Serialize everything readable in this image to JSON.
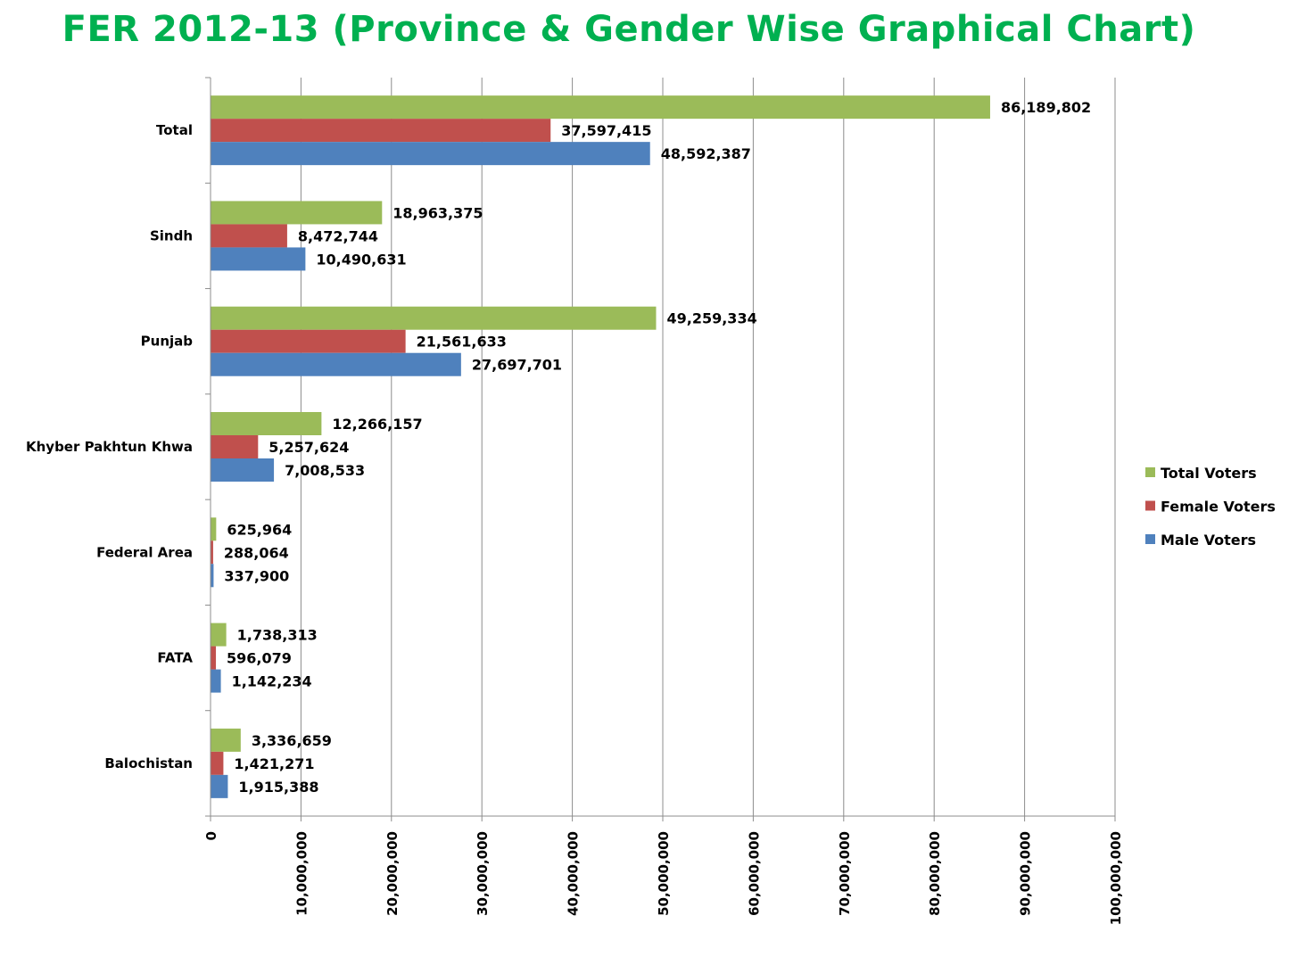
{
  "chart_data": {
    "type": "bar",
    "orientation": "horizontal",
    "title": "FER 2012-13 (Province & Gender Wise Graphical Chart)",
    "categories": [
      "Total",
      "Sindh",
      "Punjab",
      "Khyber Pakhtun Khwa",
      "Federal Area",
      "FATA",
      "Balochistan"
    ],
    "series": [
      {
        "name": "Total Voters",
        "color": "#9bbb59",
        "values": [
          86189802,
          18963375,
          49259334,
          12266157,
          625964,
          1738313,
          3336659
        ],
        "labels": [
          "86,189,802",
          "18,963,375",
          "49,259,334",
          "12,266,157",
          "625,964",
          "1,738,313",
          "3,336,659"
        ]
      },
      {
        "name": "Female Voters",
        "color": "#c0504d",
        "values": [
          37597415,
          8472744,
          21561633,
          5257624,
          288064,
          596079,
          1421271
        ],
        "labels": [
          "37,597,415",
          "8,472,744",
          "21,561,633",
          "5,257,624",
          "288,064",
          "596,079",
          "1,421,271"
        ]
      },
      {
        "name": "Male Voters",
        "color": "#4f81bd",
        "values": [
          48592387,
          10490631,
          27697701,
          7008533,
          337900,
          1142234,
          1915388
        ],
        "labels": [
          "48,592,387",
          "10,490,631",
          "27,697,701",
          "7,008,533",
          "337,900",
          "1,142,234",
          "1,915,388"
        ]
      }
    ],
    "xlim": [
      0,
      100000000
    ],
    "ticks": [
      0,
      10000000,
      20000000,
      30000000,
      40000000,
      50000000,
      60000000,
      70000000,
      80000000,
      90000000,
      100000000
    ],
    "tick_labels": [
      "0",
      "10,000,000",
      "20,000,000",
      "30,000,000",
      "40,000,000",
      "50,000,000",
      "60,000,000",
      "70,000,000",
      "80,000,000",
      "90,000,000",
      "100,000,000"
    ],
    "grid": true,
    "legend_position": "right"
  }
}
